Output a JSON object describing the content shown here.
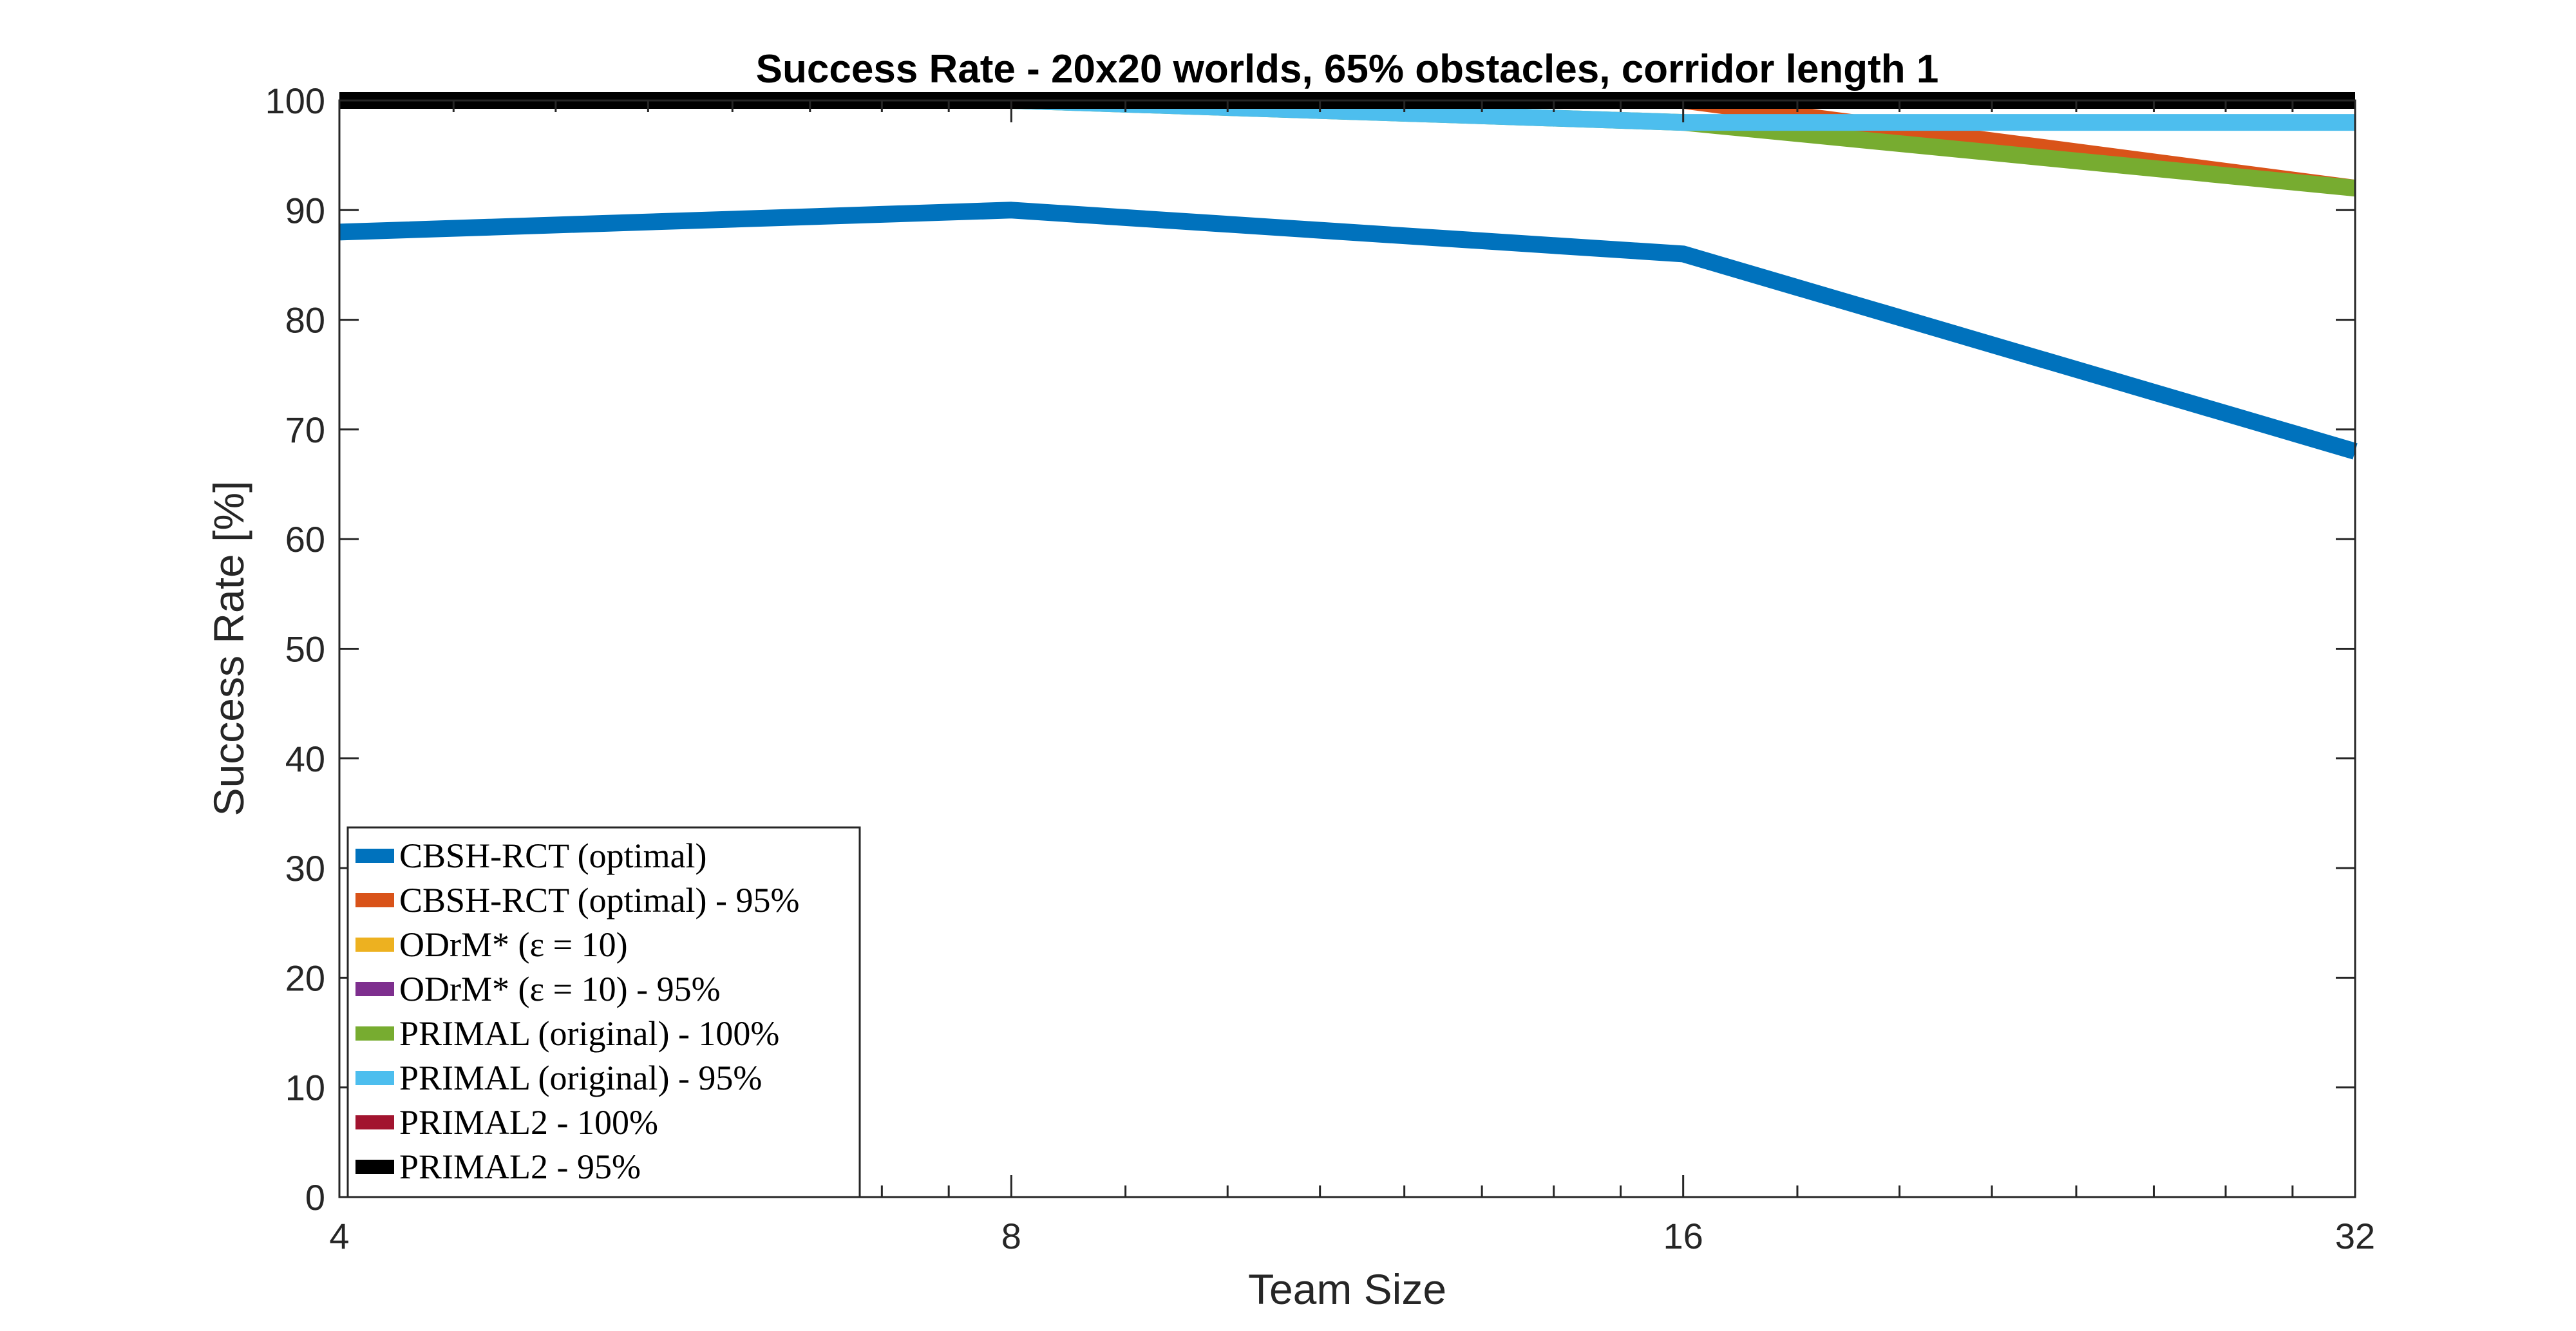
{
  "chart_data": {
    "type": "line",
    "title": "Success Rate - 20x20 worlds, 65% obstacles, corridor length 1",
    "xlabel": "Team Size",
    "ylabel": "Success Rate [%]",
    "x_scale": "log2",
    "x": [
      4,
      8,
      16,
      32
    ],
    "xticks": [
      4,
      8,
      16,
      32
    ],
    "xlim": [
      4,
      32
    ],
    "ylim": [
      0,
      100
    ],
    "yticks": [
      0,
      10,
      20,
      30,
      40,
      50,
      60,
      70,
      80,
      90,
      100
    ],
    "grid": false,
    "legend_position": "bottom-left",
    "series": [
      {
        "name": "CBSH-RCT (optimal)",
        "color": "#0072BD",
        "values": [
          88,
          90,
          86,
          68
        ]
      },
      {
        "name": "CBSH-RCT (optimal) - 95%",
        "color": "#D95319",
        "values": [
          100,
          100,
          100,
          92
        ]
      },
      {
        "name": "ODrM* (ε = 10)",
        "color": "#EDB120",
        "values": [
          null,
          null,
          null,
          null
        ]
      },
      {
        "name": "ODrM* (ε = 10) - 95%",
        "color": "#7E2F8E",
        "values": [
          null,
          null,
          null,
          null
        ]
      },
      {
        "name": "PRIMAL (original) - 100%",
        "color": "#77AC30",
        "values": [
          100,
          100,
          98,
          92
        ]
      },
      {
        "name": "PRIMAL (original) - 95%",
        "color": "#4DBEEE",
        "values": [
          100,
          100,
          98,
          98
        ]
      },
      {
        "name": "PRIMAL2 - 100%",
        "color": "#A2142F",
        "values": [
          null,
          null,
          null,
          null
        ]
      },
      {
        "name": "PRIMAL2 - 95%",
        "color": "#000000",
        "values": [
          100,
          100,
          100,
          100
        ]
      }
    ]
  }
}
